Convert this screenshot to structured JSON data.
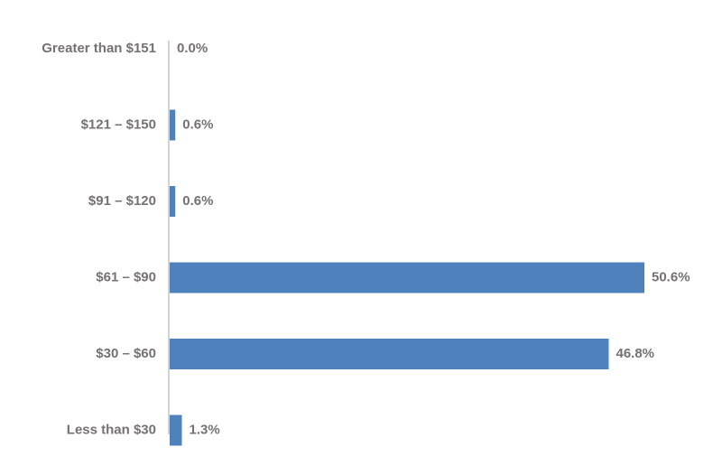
{
  "chart_data": {
    "type": "bar",
    "orientation": "horizontal",
    "categories": [
      "Greater than $151",
      "$121 – $150",
      "$91 – $120",
      "$61 – $90",
      "$30 – $60",
      "Less than $30"
    ],
    "values": [
      0.0,
      0.6,
      0.6,
      50.6,
      46.8,
      1.3
    ],
    "value_labels": [
      "0.0%",
      "0.6%",
      "0.6%",
      "50.6%",
      "46.8%",
      "1.3%"
    ],
    "title": "",
    "xlabel": "",
    "ylabel": "",
    "xlim": [
      0,
      50.6
    ],
    "grid": false,
    "legend": "none",
    "colors": {
      "bar": "#4f81bd",
      "axis": "#a6a6a6",
      "text": "#767171"
    }
  }
}
